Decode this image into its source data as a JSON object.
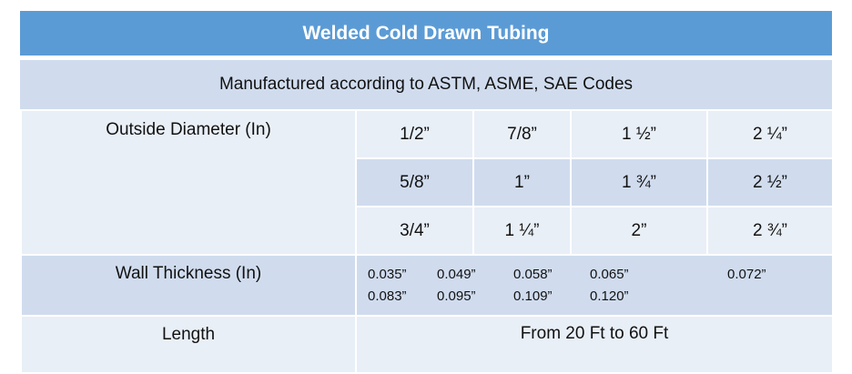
{
  "title": "Welded Cold Drawn Tubing",
  "subtitle": "Manufactured according to ASTM, ASME, SAE Codes",
  "outside_diameter": {
    "label": "Outside Diameter (In)",
    "rows": [
      [
        "1/2”",
        "7/8”",
        "1 ½”",
        "2 ¼”"
      ],
      [
        "5/8”",
        "1”",
        "1 ¾”",
        "2 ½”"
      ],
      [
        "3/4”",
        "1 ¼”",
        "2”",
        "2 ¾”"
      ]
    ]
  },
  "wall_thickness": {
    "label": "Wall Thickness (In)",
    "values": [
      "0.035”",
      "0.049”",
      "0.058”",
      "0.065”",
      "0.072”",
      "0.083”",
      "0.095”",
      "0.109”",
      "0.120”"
    ]
  },
  "length": {
    "label": "Length",
    "value": "From 20 Ft to 60 Ft"
  },
  "colors": {
    "header": "#5b9bd5",
    "band_dark": "#d0dcee",
    "band_light": "#e9eff7"
  }
}
